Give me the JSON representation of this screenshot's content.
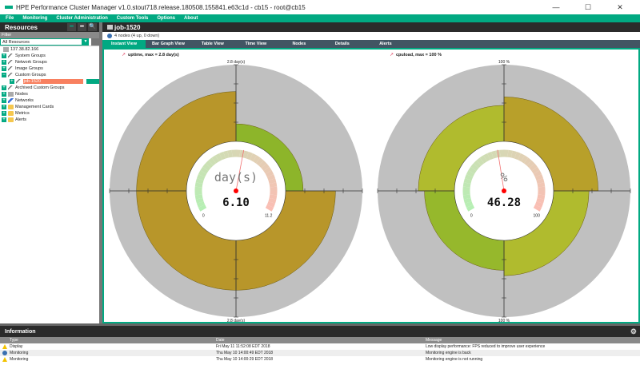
{
  "window": {
    "title": "HPE Performance Cluster Manager v1.0.stout718.release.180508.155841.e63c1d - cb15 - root@cb15",
    "minimize": "—",
    "maximize": "☐",
    "close": "✕"
  },
  "menu": [
    "File",
    "Monitoring",
    "Cluster Administration",
    "Custom Tools",
    "Options",
    "About"
  ],
  "resources": {
    "title": "Resources",
    "filter_label": "Filter",
    "selected": "All Resources",
    "tree": [
      {
        "label": "137.38.82.166",
        "icon": "server-icon",
        "level": 0,
        "expander": false
      },
      {
        "label": "System Groups",
        "icon": "group-icon",
        "level": 0,
        "expander": true
      },
      {
        "label": "Network Groups",
        "icon": "group-icon",
        "level": 0,
        "expander": true
      },
      {
        "label": "Image Groups",
        "icon": "group-icon",
        "level": 0,
        "expander": true
      },
      {
        "label": "Custom Groups",
        "icon": "group-icon",
        "level": 0,
        "expander": true,
        "expanded": true
      },
      {
        "label": "job-1520",
        "icon": "group-icon",
        "level": 1,
        "expander": true,
        "selected": true
      },
      {
        "label": "Archived Custom Groups",
        "icon": "group-icon",
        "level": 0,
        "expander": true
      },
      {
        "label": "Nodes",
        "icon": "node-icon",
        "level": 0,
        "expander": true
      },
      {
        "label": "Networks",
        "icon": "network-icon",
        "level": 0,
        "expander": true
      },
      {
        "label": "Management Cards",
        "icon": "folder-icon",
        "level": 0,
        "expander": true
      },
      {
        "label": "Metrics",
        "icon": "folder-icon",
        "level": 0,
        "expander": true
      },
      {
        "label": "Alerts",
        "icon": "folder-icon",
        "level": 0,
        "expander": true
      }
    ]
  },
  "main": {
    "title": "job-1520",
    "nodes_info": "4 nodes (4 up, 0 down)",
    "tabs": [
      {
        "label": "Instant View",
        "active": true
      },
      {
        "label": "Bar Graph View"
      },
      {
        "label": "Table View"
      },
      {
        "label": "Time View"
      },
      {
        "label": "Nodes"
      },
      {
        "label": "Details"
      },
      {
        "label": "Alerts"
      }
    ]
  },
  "colors": {
    "accent": "#01a982",
    "gray": "#c0c0c0",
    "olive": "#b8982a",
    "green": "#8db52a",
    "yellowgreen": "#b0bb2e",
    "leafgreen": "#96b82c"
  },
  "chart_data": [
    {
      "type": "polar-area",
      "title": "uptime, max = 2.8 day(s)",
      "axis_label_top": "2.8 day(s)",
      "axis_label_bottom": "2.8 day(s)",
      "max": 2.8,
      "values": [
        {
          "quadrant": "top-left",
          "value": 1.82,
          "color": "#b8962a"
        },
        {
          "quadrant": "top-right",
          "value": 0.64,
          "color": "#8db52a"
        },
        {
          "quadrant": "bottom-right",
          "value": 1.82,
          "color": "#b8962a"
        },
        {
          "quadrant": "bottom-left",
          "value": 1.82,
          "color": "#b8962a"
        }
      ],
      "gauge": {
        "unit": "day(s)",
        "value": "6.10",
        "num": 6.1,
        "min_label": "0",
        "max_label": "11.2",
        "min": 0,
        "max": 11.2
      }
    },
    {
      "type": "polar-area",
      "title": "cpuload, max = 100 %",
      "axis_label_top": "100 %",
      "axis_label_bottom": "100 %",
      "max": 100,
      "values": [
        {
          "quadrant": "top-left",
          "value": 47,
          "color": "#b0bb2e"
        },
        {
          "quadrant": "top-right",
          "value": 58,
          "color": "#b8a02a"
        },
        {
          "quadrant": "bottom-right",
          "value": 46,
          "color": "#b0bb2e"
        },
        {
          "quadrant": "bottom-left",
          "value": 39,
          "color": "#96b82c"
        }
      ],
      "gauge": {
        "unit": "%",
        "value": "46.28",
        "num": 46.28,
        "min_label": "0",
        "max_label": "100",
        "min": 0,
        "max": 100
      }
    }
  ],
  "information": {
    "title": "Information",
    "columns": [
      "Type",
      "Date",
      "Message"
    ],
    "rows": [
      {
        "type": "Display",
        "icon": "warning-icon",
        "date": "Fri May 11 11:52:08 EDT 2018",
        "message": "Low display performance: FPS reduced to improve user experience"
      },
      {
        "type": "Monitoring",
        "icon": "info-icon",
        "date": "Thu May 10 14:00:49 EDT 2018",
        "message": "Monitoring engine is back"
      },
      {
        "type": "Monitoring",
        "icon": "warning-icon",
        "date": "Thu May 10 14:00:29 EDT 2018",
        "message": "Monitoring engine is not running"
      }
    ]
  }
}
